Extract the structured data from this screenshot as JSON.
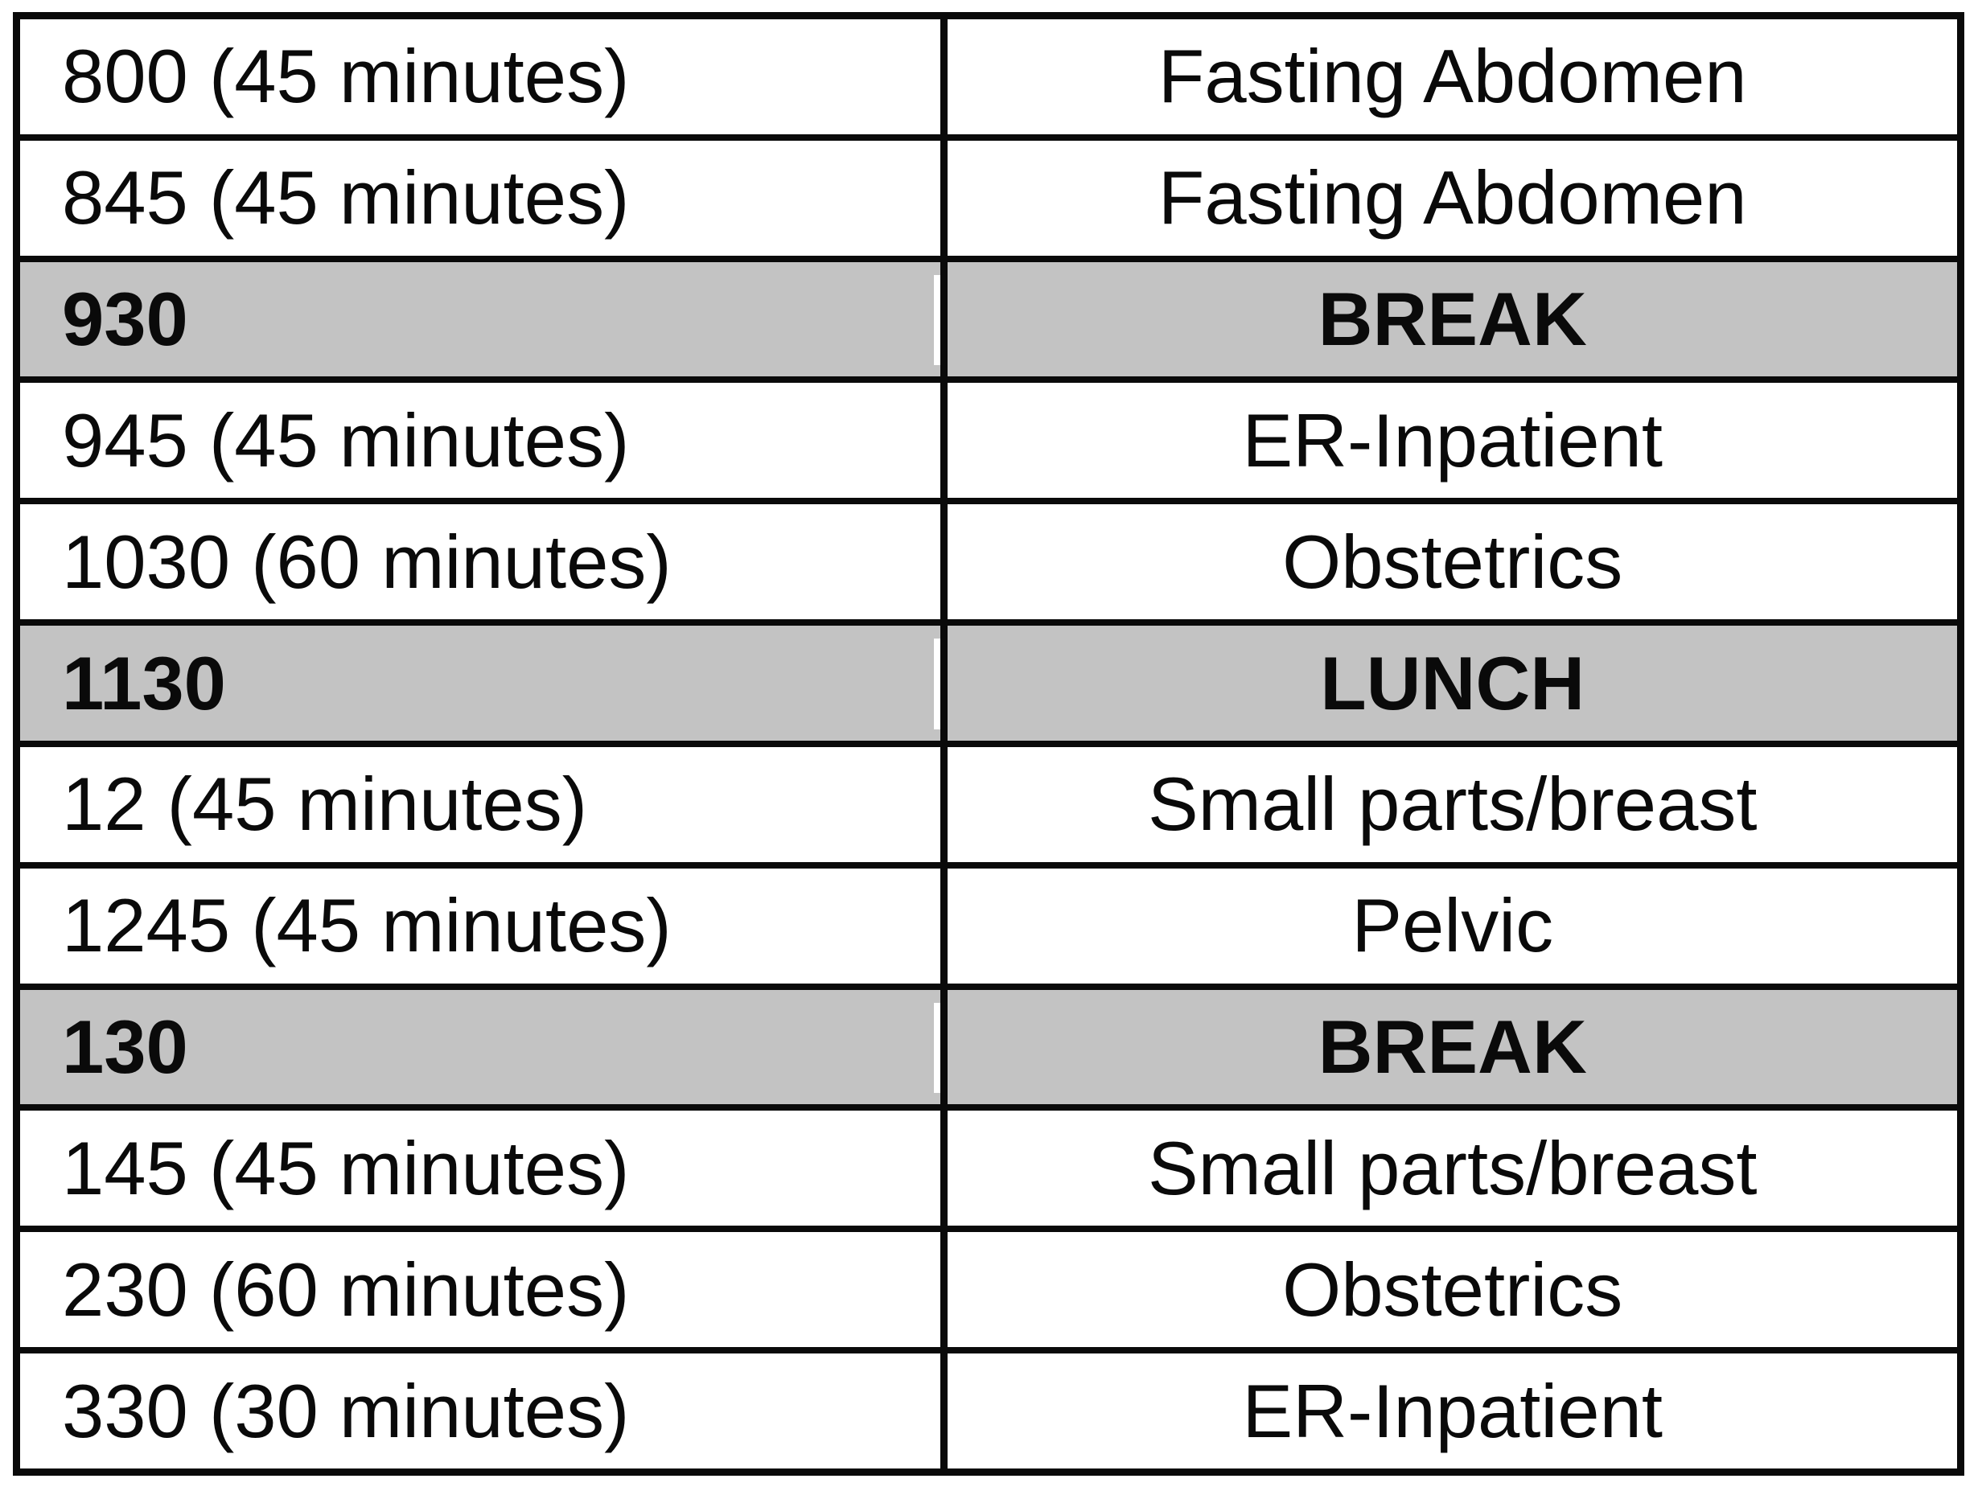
{
  "colors": {
    "border": "#0a0a0a",
    "shaded_row_background": "#c3c3c3",
    "text": "#0a0a0a",
    "page_background": "#ffffff"
  },
  "table": {
    "description": "Daily ultrasound schedule table, two columns: time slot and exam type; shaded bold rows mark breaks.",
    "rows": [
      {
        "time": "800 (45 minutes)",
        "exam": "Fasting Abdomen",
        "shaded": false
      },
      {
        "time": "845 (45 minutes)",
        "exam": "Fasting Abdomen",
        "shaded": false
      },
      {
        "time": "930",
        "exam": "BREAK",
        "shaded": true
      },
      {
        "time": "945 (45 minutes)",
        "exam": "ER-Inpatient",
        "shaded": false
      },
      {
        "time": "1030 (60 minutes)",
        "exam": "Obstetrics",
        "shaded": false
      },
      {
        "time": "1130",
        "exam": "LUNCH",
        "shaded": true
      },
      {
        "time": "12 (45 minutes)",
        "exam": "Small parts/breast",
        "shaded": false
      },
      {
        "time": "1245 (45 minutes)",
        "exam": "Pelvic",
        "shaded": false
      },
      {
        "time": "130",
        "exam": "BREAK",
        "shaded": true
      },
      {
        "time": "145 (45 minutes)",
        "exam": "Small parts/breast",
        "shaded": false
      },
      {
        "time": "230 (60 minutes)",
        "exam": "Obstetrics",
        "shaded": false
      },
      {
        "time": "330 (30 minutes)",
        "exam": "ER-Inpatient",
        "shaded": false
      }
    ]
  }
}
